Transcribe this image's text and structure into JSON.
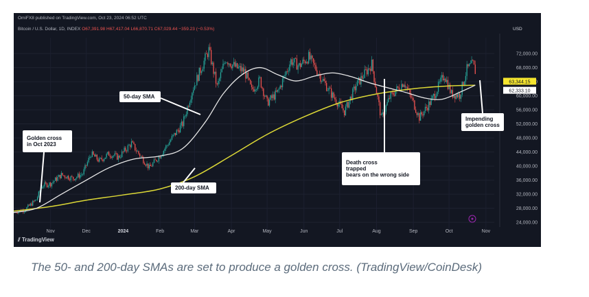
{
  "header": {
    "published": "OmiFX8 published on TradingView.com, Oct 23, 2024 06:52 UTC",
    "symbol": "Bitcoin / U.S. Dollar, 1D, INDEX",
    "open": "O67,391.98",
    "high": "H67,417.04",
    "low": "L66,870.71",
    "close": "C67,029.44",
    "change": "−359.23 (−0.53%)",
    "currency": "USD"
  },
  "branding": {
    "tv_logo": "TradingView"
  },
  "caption": "The 50- and 200-day SMAs are set to produce a golden cross. (TradingView/CoinDesk)",
  "colors": {
    "background": "#131722",
    "up": "#26a69a",
    "down": "#ef5350",
    "sma50": "#e8e8e8",
    "sma200": "#dcd836",
    "label_bg": "#ffffff",
    "price_tag_yellow": "#f5e52e"
  },
  "chart_data": {
    "type": "line",
    "y_axis": {
      "ticks": [
        24000,
        28000,
        32000,
        36000,
        40000,
        44000,
        48000,
        52000,
        56000,
        60000,
        64000,
        68000,
        72000
      ],
      "tick_labels": [
        "24,000.00",
        "28,000.00",
        "32,000.00",
        "36,000.00",
        "40,000.00",
        "44,000.00",
        "48,000.00",
        "52,000.00",
        "56,000.00",
        "60,000.00",
        "64,000.00",
        "68,000.00",
        "72,000.00"
      ],
      "ylim": [
        21500,
        76500
      ]
    },
    "x_axis": {
      "ticks": [
        "2023-11-01",
        "2023-12-01",
        "2024-01-01",
        "2024-02-01",
        "2024-03-01",
        "2024-04-01",
        "2024-05-01",
        "2024-06-01",
        "2024-07-01",
        "2024-08-01",
        "2024-09-01",
        "2024-10-01",
        "2024-11-01"
      ],
      "tick_labels": [
        "Nov",
        "Dec",
        "2024",
        "Feb",
        "Mar",
        "Apr",
        "May",
        "Jun",
        "Jul",
        "Aug",
        "Sep",
        "Oct",
        "Nov"
      ],
      "xlim": [
        "2023-10-01",
        "2024-11-08"
      ]
    },
    "series": [
      {
        "name": "50-day SMA",
        "points": [
          [
            "2023-10-01",
            26800
          ],
          [
            "2023-10-20",
            28000
          ],
          [
            "2023-11-10",
            32000
          ],
          [
            "2023-12-01",
            36000
          ],
          [
            "2023-12-20",
            39500
          ],
          [
            "2024-01-10",
            42000
          ],
          [
            "2024-01-31",
            42800
          ],
          [
            "2024-02-20",
            45000
          ],
          [
            "2024-03-10",
            52500
          ],
          [
            "2024-03-25",
            60500
          ],
          [
            "2024-04-10",
            66000
          ],
          [
            "2024-04-25",
            68000
          ],
          [
            "2024-05-10",
            66000
          ],
          [
            "2024-05-25",
            64200
          ],
          [
            "2024-06-10",
            65600
          ],
          [
            "2024-06-25",
            66500
          ],
          [
            "2024-07-10",
            65500
          ],
          [
            "2024-07-25",
            63800
          ],
          [
            "2024-08-10",
            62300
          ],
          [
            "2024-08-25",
            61000
          ],
          [
            "2024-09-10",
            59400
          ],
          [
            "2024-09-25",
            59000
          ],
          [
            "2024-10-10",
            61000
          ],
          [
            "2024-10-23",
            63000
          ]
        ]
      },
      {
        "name": "200-day SMA",
        "points": [
          [
            "2023-10-01",
            27200
          ],
          [
            "2023-11-01",
            28500
          ],
          [
            "2023-12-01",
            30300
          ],
          [
            "2024-01-01",
            31800
          ],
          [
            "2024-02-01",
            33500
          ],
          [
            "2024-03-01",
            37000
          ],
          [
            "2024-04-01",
            43000
          ],
          [
            "2024-05-01",
            49000
          ],
          [
            "2024-06-01",
            54000
          ],
          [
            "2024-07-01",
            58000
          ],
          [
            "2024-08-01",
            60500
          ],
          [
            "2024-09-01",
            62000
          ],
          [
            "2024-10-01",
            62800
          ],
          [
            "2024-10-23",
            63000
          ]
        ]
      },
      {
        "name": "BTC/USD",
        "points": [
          [
            "2023-10-01",
            27000
          ],
          [
            "2023-10-10",
            27500
          ],
          [
            "2023-10-20",
            30500
          ],
          [
            "2023-10-25",
            34500
          ],
          [
            "2023-11-01",
            35000
          ],
          [
            "2023-11-10",
            37500
          ],
          [
            "2023-11-20",
            36500
          ],
          [
            "2023-11-28",
            37800
          ],
          [
            "2023-12-05",
            43500
          ],
          [
            "2023-12-12",
            41500
          ],
          [
            "2023-12-20",
            43500
          ],
          [
            "2023-12-28",
            42500
          ],
          [
            "2024-01-08",
            46500
          ],
          [
            "2024-01-12",
            44500
          ],
          [
            "2024-01-23",
            39500
          ],
          [
            "2024-02-01",
            43000
          ],
          [
            "2024-02-10",
            47500
          ],
          [
            "2024-02-20",
            52000
          ],
          [
            "2024-02-28",
            61500
          ],
          [
            "2024-03-05",
            66500
          ],
          [
            "2024-03-13",
            73000
          ],
          [
            "2024-03-20",
            62500
          ],
          [
            "2024-03-27",
            70500
          ],
          [
            "2024-04-05",
            68000
          ],
          [
            "2024-04-12",
            67000
          ],
          [
            "2024-04-18",
            61500
          ],
          [
            "2024-04-25",
            64500
          ],
          [
            "2024-05-01",
            58000
          ],
          [
            "2024-05-10",
            61000
          ],
          [
            "2024-05-21",
            70000
          ],
          [
            "2024-05-28",
            68500
          ],
          [
            "2024-06-05",
            71000
          ],
          [
            "2024-06-14",
            66000
          ],
          [
            "2024-06-24",
            60500
          ],
          [
            "2024-07-05",
            55500
          ],
          [
            "2024-07-15",
            63000
          ],
          [
            "2024-07-28",
            69000
          ],
          [
            "2024-08-05",
            53500
          ],
          [
            "2024-08-12",
            59500
          ],
          [
            "2024-08-24",
            64000
          ],
          [
            "2024-09-01",
            58000
          ],
          [
            "2024-09-06",
            53800
          ],
          [
            "2024-09-16",
            58500
          ],
          [
            "2024-09-27",
            66000
          ],
          [
            "2024-10-03",
            60500
          ],
          [
            "2024-10-10",
            60200
          ],
          [
            "2024-10-16",
            67500
          ],
          [
            "2024-10-21",
            69000
          ],
          [
            "2024-10-23",
            67029
          ]
        ]
      }
    ],
    "price_tags": [
      {
        "value": 63344.15,
        "label": "63,344.15",
        "kind": "yellow"
      },
      {
        "value": 62333.1,
        "label": "62,333.10",
        "kind": "white"
      }
    ],
    "annotations": [
      {
        "text": [
          "Golden cross",
          "in Oct 2023"
        ]
      },
      {
        "text": [
          "50-day SMA"
        ]
      },
      {
        "text": [
          "200-day SMA"
        ]
      },
      {
        "text": [
          "Death cross",
          "trapped",
          "bears on the wrong side"
        ]
      },
      {
        "text": [
          "Impending",
          "golden cross"
        ]
      }
    ]
  }
}
